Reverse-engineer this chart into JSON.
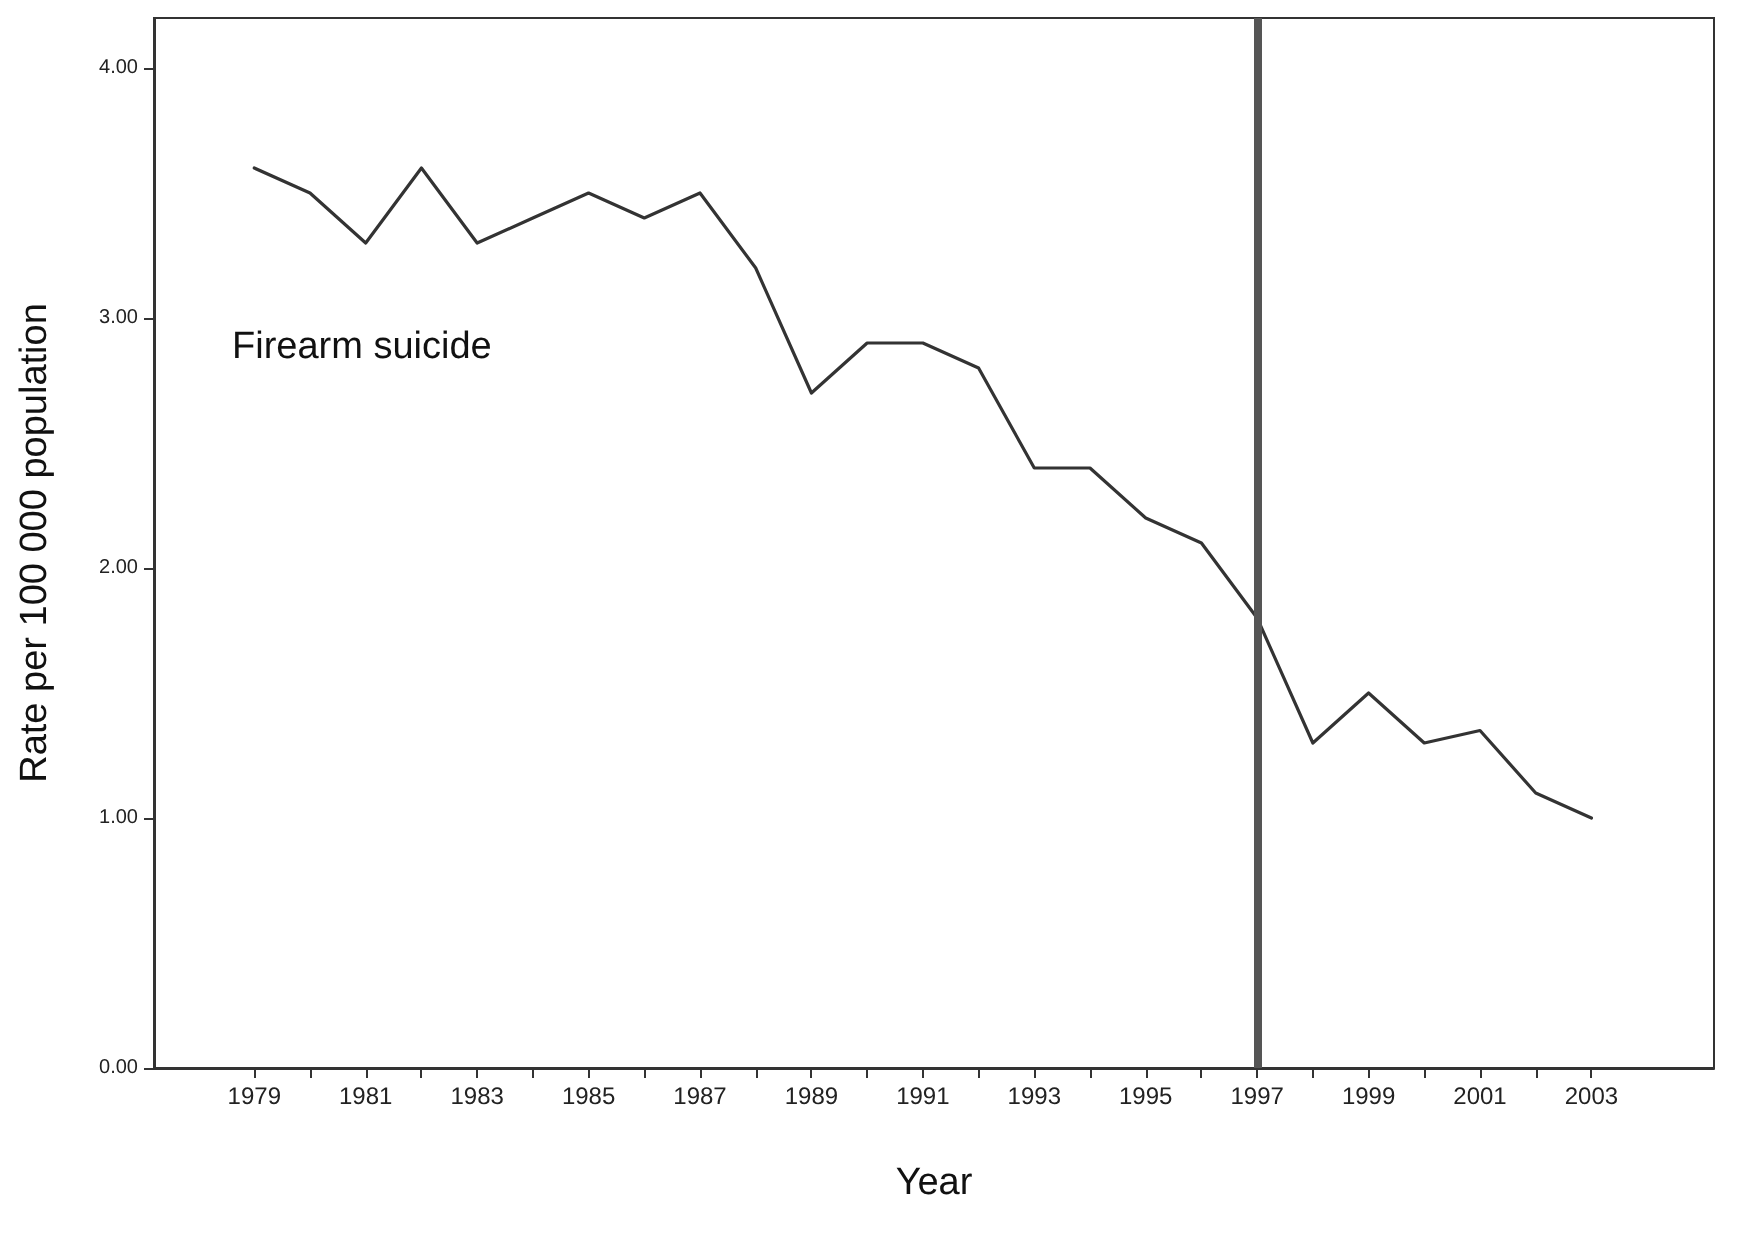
{
  "chart_data": {
    "type": "line",
    "xlabel": "Year",
    "ylabel": "Rate per 100 000 population",
    "x": [
      1979,
      1980,
      1981,
      1982,
      1983,
      1984,
      1985,
      1986,
      1987,
      1988,
      1989,
      1990,
      1991,
      1992,
      1993,
      1994,
      1995,
      1996,
      1997,
      1998,
      1999,
      2000,
      2001,
      2002,
      2003
    ],
    "series": [
      {
        "color": "#333333",
        "values": [
          3.6,
          3.5,
          3.3,
          3.6,
          3.3,
          3.4,
          3.5,
          3.4,
          3.5,
          3.2,
          2.7,
          2.9,
          2.9,
          2.8,
          2.4,
          2.4,
          2.2,
          2.1,
          1.8,
          1.3,
          1.5,
          1.3,
          1.35,
          1.1,
          1.0
        ]
      }
    ],
    "xlim": [
      1977.2,
      2005.2
    ],
    "xticks": [
      1979,
      {
        "value": 1980,
        "label": null
      },
      1981,
      {
        "value": 1982,
        "label": null
      },
      1983,
      {
        "value": 1984,
        "label": null
      },
      1985,
      {
        "value": 1986,
        "label": null
      },
      1987,
      {
        "value": 1988,
        "label": null
      },
      1989,
      {
        "value": 1990,
        "label": null
      },
      1991,
      {
        "value": 1992,
        "label": null
      },
      1993,
      {
        "value": 1994,
        "label": null
      },
      1995,
      {
        "value": 1996,
        "label": null
      },
      1997,
      {
        "value": 1998,
        "label": null
      },
      1999,
      {
        "value": 2000,
        "label": null
      },
      2001,
      {
        "value": 2002,
        "label": null
      },
      2003
    ],
    "ylim": [
      0,
      4.2
    ],
    "yticks": [
      {
        "value": 0,
        "label": "0.00"
      },
      {
        "value": 1,
        "label": "1.00"
      },
      {
        "value": 2,
        "label": "2.00"
      },
      {
        "value": 3,
        "label": "3.00"
      },
      {
        "value": 4,
        "label": "4.00"
      }
    ],
    "ref_lines": [
      {
        "axis": "x",
        "value": 1997,
        "label": null,
        "color": "#555555"
      }
    ],
    "annotations": [
      "Firearm suicide"
    ],
    "grid": false,
    "marker": "none",
    "line_style": "solid"
  }
}
